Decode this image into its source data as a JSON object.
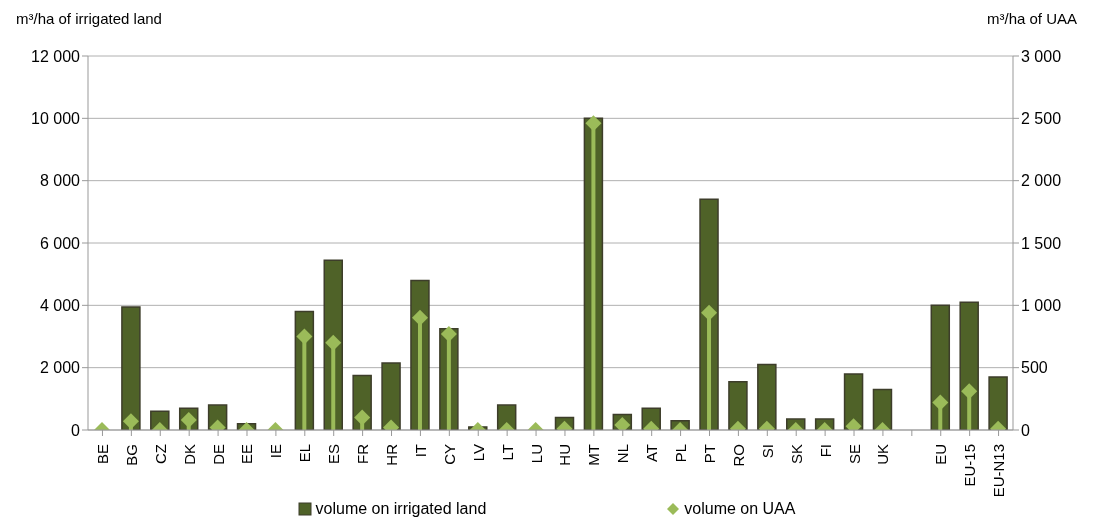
{
  "chart_data": {
    "type": "bar",
    "ylabel": "m³/ha of irrigated land",
    "y2label": "m³/ha of UAA",
    "categories": [
      "BE",
      "BG",
      "CZ",
      "DK",
      "DE",
      "EE",
      "IE",
      "EL",
      "ES",
      "FR",
      "HR",
      "IT",
      "CY",
      "LV",
      "LT",
      "LU",
      "HU",
      "MT",
      "NL",
      "AT",
      "PL",
      "PT",
      "RO",
      "SI",
      "SK",
      "FI",
      "SE",
      "UK",
      null,
      "EU",
      "EU-15",
      "EU-N13"
    ],
    "series": [
      {
        "name": "volume on irrigated land",
        "color": "#4f6228",
        "values": [
          0,
          3950,
          600,
          700,
          800,
          200,
          0,
          3800,
          5450,
          1750,
          2150,
          4800,
          3250,
          100,
          800,
          0,
          400,
          10000,
          500,
          700,
          300,
          7400,
          1550,
          2100,
          350,
          350,
          1800,
          1300,
          null,
          4000,
          4100,
          1700
        ]
      },
      {
        "name": "volume on UAA",
        "type": "lollipop",
        "axis": "y2",
        "marker": "diamond",
        "color": "#9bbb59",
        "values": [
          0,
          70,
          0,
          80,
          20,
          0,
          0,
          750,
          700,
          100,
          20,
          900,
          770,
          0,
          0,
          0,
          10,
          2460,
          40,
          10,
          0,
          940,
          10,
          10,
          0,
          0,
          30,
          0,
          null,
          220,
          310,
          10
        ]
      }
    ],
    "ylim": [
      0,
      12000
    ],
    "yticks": [
      0,
      {
        "value": 2000,
        "label": "2 000"
      },
      {
        "value": 4000,
        "label": "4 000"
      },
      {
        "value": 6000,
        "label": "6 000"
      },
      {
        "value": 8000,
        "label": "8 000"
      },
      {
        "value": 10000,
        "label": "10 000"
      },
      {
        "value": 12000,
        "label": "12 000"
      }
    ],
    "y2lim": [
      0,
      3000
    ],
    "y2ticks": [
      0,
      500,
      {
        "value": 1000,
        "label": "1 000"
      },
      {
        "value": 1500,
        "label": "1 500"
      },
      {
        "value": 2000,
        "label": "2 000"
      },
      {
        "value": 2500,
        "label": "2 500"
      },
      {
        "value": 3000,
        "label": "3 000"
      }
    ],
    "grid": "y",
    "legend": "bottom"
  }
}
